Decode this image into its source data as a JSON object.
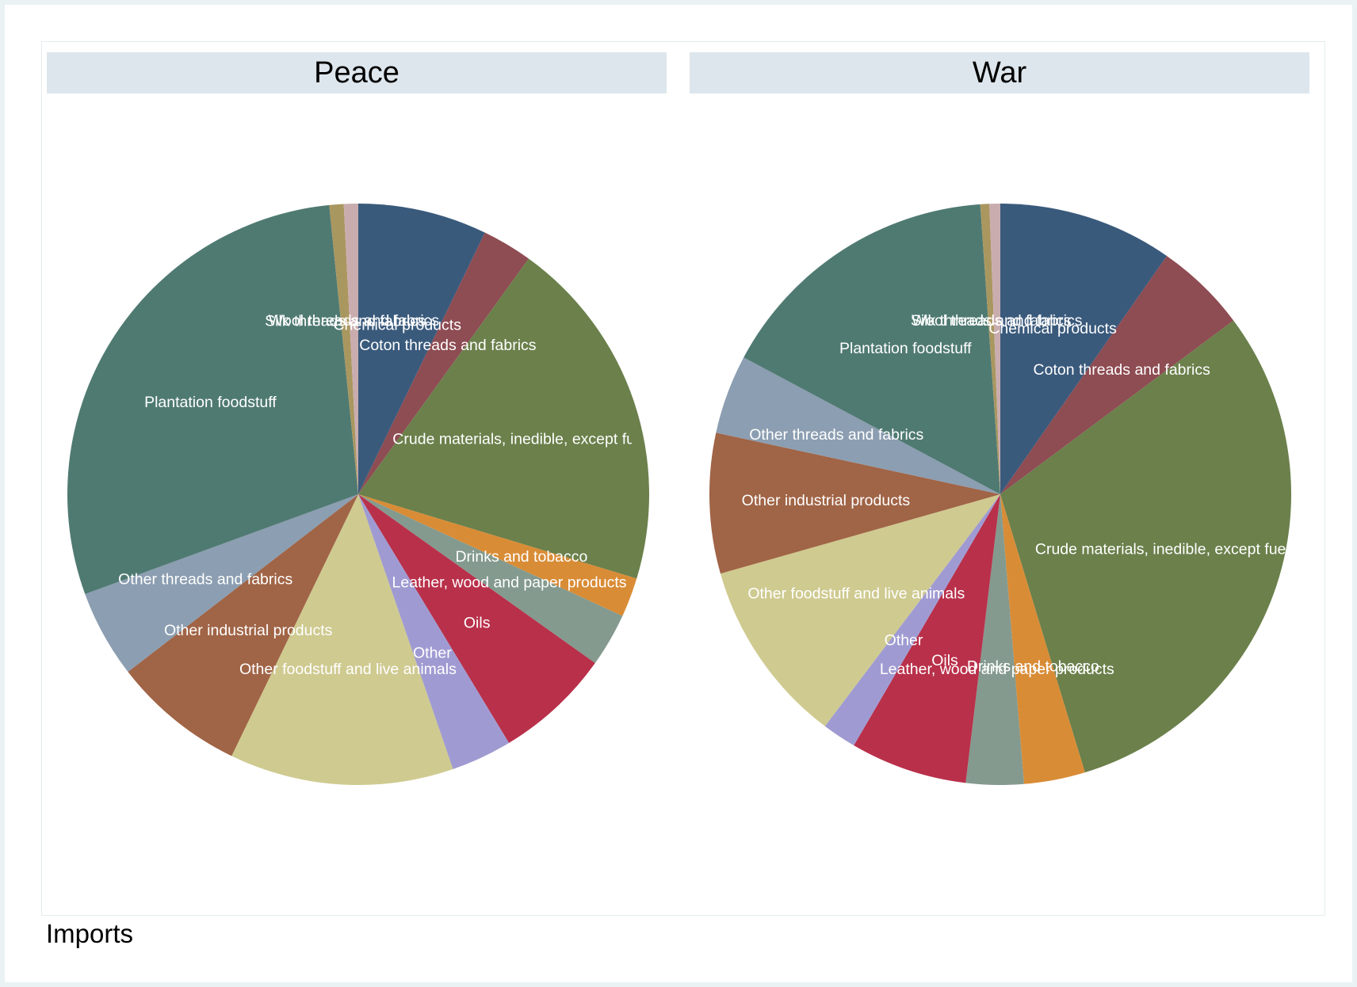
{
  "note": "Imports",
  "colors": {
    "Chemical products": "#3a5a7c",
    "Coton threads and fabrics": "#8e4c53",
    "Crude materials, inedible, except fuels": "#6b804b",
    "Drinks and tobacco": "#d98c36",
    "Leather, wood and paper products": "#849a8f",
    "Oils": "#b9304a",
    "Other": "#9f9bd2",
    "Other foodstuff and live animals": "#cfca90",
    "Other industrial products": "#a06446",
    "Other threads and fabrics": "#8c9eb1",
    "Plantation foodstuff": "#4f7a72",
    "Silk threads and fabrics": "#a99760",
    "Wool threads and fabrics": "#c9adae"
  },
  "chart_data": [
    {
      "type": "pie",
      "title": "Peace",
      "slices": [
        {
          "label": "Chemical products",
          "value": 7.2
        },
        {
          "label": "Coton threads and fabrics",
          "value": 2.8
        },
        {
          "label": "Crude materials, inedible, except fuels",
          "value": 19.8
        },
        {
          "label": "Drinks and tobacco",
          "value": 2.2
        },
        {
          "label": "Leather, wood and paper products",
          "value": 3.0
        },
        {
          "label": "Oils",
          "value": 6.5
        },
        {
          "label": "Other",
          "value": 3.4
        },
        {
          "label": "Other foodstuff and live animals",
          "value": 12.5
        },
        {
          "label": "Other industrial products",
          "value": 7.4
        },
        {
          "label": "Other threads and fabrics",
          "value": 4.9
        },
        {
          "label": "Plantation foodstuff",
          "value": 29.1
        },
        {
          "label": "Silk threads and fabrics",
          "value": 0.8
        },
        {
          "label": "Wool threads and fabrics",
          "value": 0.8
        }
      ]
    },
    {
      "type": "pie",
      "title": "War",
      "slices": [
        {
          "label": "Chemical products",
          "value": 9.7
        },
        {
          "label": "Coton threads and fabrics",
          "value": 5.1
        },
        {
          "label": "Crude materials, inedible, except fuels",
          "value": 30.5
        },
        {
          "label": "Drinks and tobacco",
          "value": 3.4
        },
        {
          "label": "Leather, wood and paper products",
          "value": 3.2
        },
        {
          "label": "Oils",
          "value": 6.5
        },
        {
          "label": "Other",
          "value": 1.9
        },
        {
          "label": "Other foodstuff and live animals",
          "value": 10.3
        },
        {
          "label": "Other industrial products",
          "value": 7.8
        },
        {
          "label": "Other threads and fabrics",
          "value": 4.4
        },
        {
          "label": "Plantation foodstuff",
          "value": 16.1
        },
        {
          "label": "Silk threads and fabrics",
          "value": 0.5
        },
        {
          "label": "Wool threads and fabrics",
          "value": 0.6
        }
      ]
    }
  ]
}
